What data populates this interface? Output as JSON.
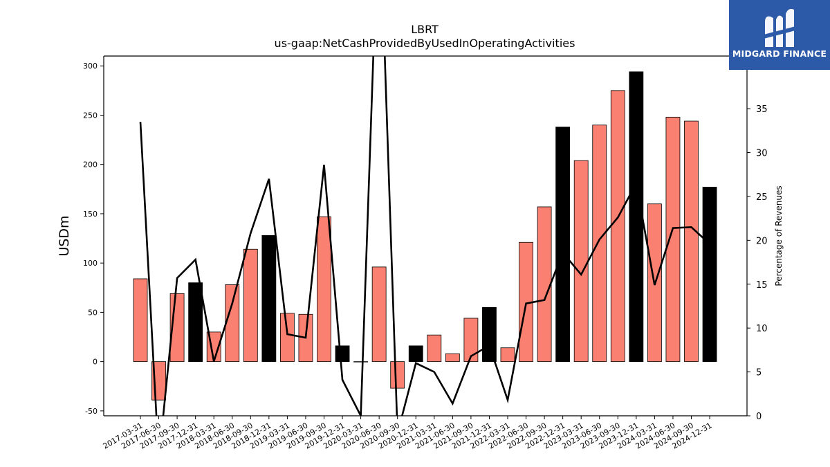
{
  "chart_data": {
    "type": "bar",
    "title": "LBRT",
    "subtitle": "us-gaap:NetCashProvidedByUsedInOperatingActivities",
    "ylabel": "USDm",
    "ylabel_right": "Percentage of Revenues",
    "ylim": [
      -55,
      310
    ],
    "ylim_right": [
      0,
      41
    ],
    "yticks": [
      -50,
      0,
      50,
      100,
      150,
      200,
      250,
      300
    ],
    "yticks_right": [
      0,
      5,
      10,
      15,
      20,
      25,
      30,
      35,
      40
    ],
    "categories": [
      "2017-03-31",
      "2017-06-30",
      "2017-09-30",
      "2017-12-31",
      "2018-03-31",
      "2018-06-30",
      "2018-09-30",
      "2018-12-31",
      "2019-03-31",
      "2019-06-30",
      "2019-09-30",
      "2019-12-31",
      "2020-03-31",
      "2020-06-30",
      "2020-09-30",
      "2020-12-31",
      "2021-03-31",
      "2021-06-30",
      "2021-09-30",
      "2021-12-31",
      "2022-03-31",
      "2022-06-30",
      "2022-09-30",
      "2022-12-31",
      "2023-03-31",
      "2023-06-30",
      "2023-09-30",
      "2023-12-31",
      "2024-03-31",
      "2024-06-30",
      "2024-09-30",
      "2024-12-31"
    ],
    "series": [
      {
        "name": "",
        "kind": "bar",
        "values": [
          84,
          -39,
          69,
          80,
          30,
          78,
          114,
          128,
          49,
          48,
          147,
          16,
          0,
          96,
          -27,
          16,
          27,
          8,
          44,
          55,
          14,
          121,
          157,
          238,
          204,
          240,
          275,
          294,
          160,
          248,
          244,
          177
        ],
        "colors": [
          "#fa8072",
          "#fa8072",
          "#fa8072",
          "#000000",
          "#fa8072",
          "#fa8072",
          "#fa8072",
          "#000000",
          "#fa8072",
          "#fa8072",
          "#fa8072",
          "#000000",
          "#fa8072",
          "#fa8072",
          "#fa8072",
          "#000000",
          "#fa8072",
          "#fa8072",
          "#fa8072",
          "#000000",
          "#fa8072",
          "#fa8072",
          "#fa8072",
          "#000000",
          "#fa8072",
          "#fa8072",
          "#fa8072",
          "#000000",
          "#fa8072",
          "#fa8072",
          "#fa8072",
          "#000000"
        ]
      },
      {
        "name": "",
        "kind": "line",
        "axis": "right",
        "values": [
          33.5,
          -5,
          15.7,
          17.8,
          6.2,
          12.8,
          20.8,
          27.0,
          9.3,
          8.9,
          28.6,
          4.1,
          0,
          60,
          -2,
          6.0,
          5.0,
          1.4,
          6.8,
          8.0,
          1.8,
          12.8,
          13.2,
          18.6,
          16.1,
          20.1,
          22.6,
          26.5,
          14.9,
          21.4,
          21.5,
          19.6
        ]
      }
    ],
    "bar_color": "#fa8072",
    "highlight_color": "#000000",
    "grid": false
  },
  "logo": {
    "text": "MIDGARD FINANCE",
    "background": "#2c5aa8"
  }
}
